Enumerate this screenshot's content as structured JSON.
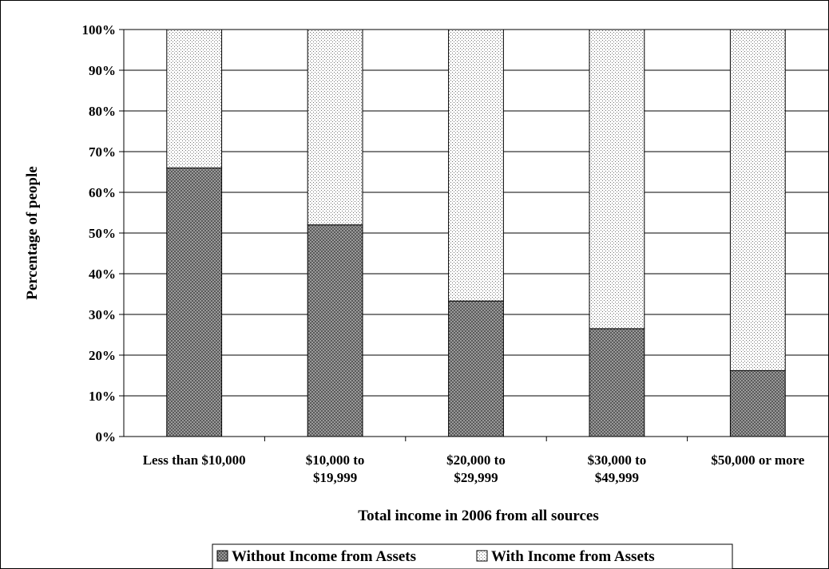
{
  "chart_data": {
    "type": "bar",
    "stacked": true,
    "percent": true,
    "categories": [
      [
        "Less than $10,000"
      ],
      [
        "$10,000 to",
        "$19,999"
      ],
      [
        "$20,000 to",
        "$29,999"
      ],
      [
        "$30,000 to",
        "$49,999"
      ],
      [
        "$50,000 or more"
      ]
    ],
    "series": [
      {
        "name": "Without Income from Assets",
        "values": [
          66,
          52,
          33.3,
          26.5,
          16.2
        ],
        "pattern": "crosshatch",
        "color": "#808080"
      },
      {
        "name": "With Income from Assets",
        "values": [
          34,
          48,
          66.7,
          73.5,
          83.8
        ],
        "pattern": "dots",
        "color": "#ffffff"
      }
    ],
    "xlabel": "Total income in 2006 from all sources",
    "ylabel": "Percentage of people",
    "ylim": [
      0,
      100
    ],
    "yticks": [
      "0%",
      "10%",
      "20%",
      "30%",
      "40%",
      "50%",
      "60%",
      "70%",
      "80%",
      "90%",
      "100%"
    ],
    "grid": true,
    "legend": "bottom"
  }
}
